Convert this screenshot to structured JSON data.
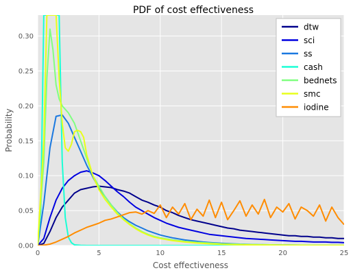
{
  "chart_data": {
    "type": "line",
    "title": "PDF of cost effectiveness",
    "xlabel": "Cost effectiveness",
    "ylabel": "Probability",
    "xlim": [
      0,
      25
    ],
    "ylim": [
      0,
      0.33
    ],
    "xticks": [
      0,
      5,
      10,
      15,
      20,
      25
    ],
    "yticks": [
      0.0,
      0.05,
      0.1,
      0.15,
      0.2,
      0.25,
      0.3
    ],
    "ytick_labels": [
      "0.00",
      "0.05",
      "0.10",
      "0.15",
      "0.20",
      "0.25",
      "0.30"
    ],
    "grid": true,
    "legend": "top-right",
    "series": [
      {
        "name": "dtw",
        "color": "#00008b",
        "x": [
          0,
          0.5,
          1,
          1.5,
          2,
          2.5,
          3,
          3.5,
          4,
          4.5,
          5,
          5.5,
          6,
          6.5,
          7,
          7.5,
          8,
          8.5,
          9,
          9.5,
          10,
          10.5,
          11,
          11.5,
          12,
          12.5,
          13,
          13.5,
          14,
          14.5,
          15,
          15.5,
          16,
          16.5,
          17,
          17.5,
          18,
          18.5,
          19,
          19.5,
          20,
          20.5,
          21,
          21.5,
          22,
          22.5,
          23,
          23.5,
          24,
          24.5,
          25
        ],
        "y": [
          0,
          0.003,
          0.02,
          0.04,
          0.055,
          0.065,
          0.075,
          0.08,
          0.082,
          0.084,
          0.085,
          0.084,
          0.083,
          0.08,
          0.078,
          0.075,
          0.07,
          0.065,
          0.062,
          0.058,
          0.055,
          0.05,
          0.047,
          0.043,
          0.04,
          0.037,
          0.035,
          0.033,
          0.031,
          0.029,
          0.027,
          0.025,
          0.024,
          0.022,
          0.021,
          0.02,
          0.019,
          0.018,
          0.017,
          0.016,
          0.015,
          0.014,
          0.014,
          0.013,
          0.013,
          0.012,
          0.012,
          0.011,
          0.011,
          0.01,
          0.01
        ]
      },
      {
        "name": "sci",
        "color": "#0000e0",
        "x": [
          0,
          0.5,
          1,
          1.5,
          2,
          2.5,
          3,
          3.5,
          4,
          4.5,
          5,
          5.5,
          6,
          6.5,
          7,
          7.5,
          8,
          8.5,
          9,
          9.5,
          10,
          10.5,
          11,
          11.5,
          12,
          12.5,
          13,
          13.5,
          14,
          14.5,
          15,
          15.5,
          16,
          16.5,
          17,
          17.5,
          18,
          18.5,
          19,
          19.5,
          20,
          20.5,
          21,
          21.5,
          22,
          22.5,
          23,
          23.5,
          24,
          24.5,
          25
        ],
        "y": [
          0,
          0.01,
          0.04,
          0.065,
          0.082,
          0.093,
          0.1,
          0.105,
          0.107,
          0.104,
          0.1,
          0.093,
          0.085,
          0.077,
          0.07,
          0.062,
          0.055,
          0.05,
          0.045,
          0.04,
          0.036,
          0.032,
          0.029,
          0.026,
          0.024,
          0.022,
          0.02,
          0.018,
          0.016,
          0.015,
          0.014,
          0.013,
          0.012,
          0.011,
          0.01,
          0.0095,
          0.009,
          0.0085,
          0.008,
          0.0075,
          0.007,
          0.0065,
          0.006,
          0.006,
          0.0055,
          0.005,
          0.005,
          0.005,
          0.0045,
          0.0045,
          0.004
        ]
      },
      {
        "name": "ss",
        "color": "#1a78e0",
        "x": [
          0,
          0.5,
          1,
          1.5,
          2,
          2.5,
          3,
          3.5,
          4,
          4.5,
          5,
          5.5,
          6,
          6.5,
          7,
          7.5,
          8,
          8.5,
          9,
          9.5,
          10,
          10.5,
          11,
          11.5,
          12,
          12.5,
          13,
          13.5,
          14,
          14.5,
          15,
          15.5,
          16,
          16.5,
          17,
          17.5,
          18,
          18.5,
          19,
          19.5,
          20,
          20.5,
          21,
          21.5,
          22,
          22.5,
          23,
          23.5,
          24,
          24.5,
          25
        ],
        "y": [
          0,
          0.06,
          0.14,
          0.185,
          0.187,
          0.175,
          0.155,
          0.135,
          0.115,
          0.098,
          0.082,
          0.07,
          0.058,
          0.048,
          0.04,
          0.034,
          0.029,
          0.025,
          0.021,
          0.018,
          0.015,
          0.013,
          0.011,
          0.0095,
          0.008,
          0.007,
          0.006,
          0.005,
          0.0043,
          0.0037,
          0.0032,
          0.0028,
          0.0024,
          0.002,
          0.0018,
          0.0015,
          0.0013,
          0.0011,
          0.001,
          0.0009,
          0.0008,
          0.0007,
          0.0006,
          0.0005,
          0.0005,
          0.0004,
          0.0004,
          0.0003,
          0.0003,
          0.0003,
          0.0002
        ]
      },
      {
        "name": "cash",
        "color": "#1affd5",
        "x": [
          0,
          0.25,
          0.5,
          0.75,
          1,
          1.25,
          1.5,
          1.75,
          2,
          2.25,
          2.5,
          2.75,
          3,
          3.5,
          4,
          5,
          6,
          8,
          10,
          15,
          20,
          25
        ],
        "y": [
          0,
          0.05,
          0.33,
          0.33,
          0.33,
          0.33,
          0.33,
          0.33,
          0.12,
          0.04,
          0.012,
          0.004,
          0.001,
          0.0002,
          0,
          0,
          0,
          0,
          0,
          0,
          0,
          0
        ]
      },
      {
        "name": "bednets",
        "color": "#80ff80",
        "x": [
          0,
          0.5,
          0.75,
          1,
          1.25,
          1.5,
          1.75,
          2,
          2.5,
          3,
          3.5,
          4,
          4.5,
          5,
          5.5,
          6,
          6.5,
          7,
          7.5,
          8,
          8.5,
          9,
          9.5,
          10,
          11,
          12,
          13,
          14,
          15,
          16,
          17,
          18,
          19,
          20,
          21,
          22,
          23,
          24,
          25
        ],
        "y": [
          0,
          0.12,
          0.24,
          0.31,
          0.28,
          0.23,
          0.21,
          0.2,
          0.19,
          0.175,
          0.15,
          0.125,
          0.1,
          0.085,
          0.07,
          0.058,
          0.047,
          0.038,
          0.031,
          0.025,
          0.02,
          0.016,
          0.013,
          0.011,
          0.008,
          0.006,
          0.0045,
          0.0035,
          0.0025,
          0.002,
          0.0015,
          0.0012,
          0.001,
          0.0008,
          0.0006,
          0.0005,
          0.0004,
          0.0003,
          0.0003
        ]
      },
      {
        "name": "smc",
        "color": "#e8ff1a",
        "x": [
          0,
          0.5,
          0.75,
          1,
          1.25,
          1.5,
          1.75,
          2,
          2.25,
          2.5,
          2.75,
          3,
          3.25,
          3.5,
          3.75,
          4,
          4.5,
          5,
          5.5,
          6,
          6.5,
          7,
          7.5,
          8,
          8.5,
          9,
          9.5,
          10,
          11,
          12,
          13,
          14,
          15,
          16,
          17,
          18,
          19,
          20,
          21,
          22,
          23,
          24,
          25
        ],
        "y": [
          0,
          0.15,
          0.33,
          0.33,
          0.33,
          0.33,
          0.24,
          0.175,
          0.14,
          0.135,
          0.145,
          0.163,
          0.165,
          0.163,
          0.155,
          0.13,
          0.1,
          0.08,
          0.066,
          0.055,
          0.045,
          0.037,
          0.03,
          0.024,
          0.019,
          0.015,
          0.012,
          0.01,
          0.007,
          0.005,
          0.0035,
          0.0025,
          0.0018,
          0.0013,
          0.001,
          0.0008,
          0.0006,
          0.0005,
          0.0004,
          0.0003,
          0.0003,
          0.0002,
          0.0002
        ]
      },
      {
        "name": "iodine",
        "color": "#ff8c00",
        "x": [
          0,
          0.5,
          1,
          1.5,
          2,
          2.5,
          3,
          3.5,
          4,
          4.5,
          5,
          5.5,
          6,
          6.5,
          7,
          7.5,
          8,
          8.5,
          9,
          9.5,
          10,
          10.5,
          11,
          11.5,
          12,
          12.5,
          13,
          13.5,
          14,
          14.5,
          15,
          15.5,
          16,
          16.5,
          17,
          17.5,
          18,
          18.5,
          19,
          19.5,
          20,
          20.5,
          21,
          21.5,
          22,
          22.5,
          23,
          23.5,
          24,
          24.5,
          25
        ],
        "y": [
          0,
          0.0005,
          0.002,
          0.005,
          0.009,
          0.013,
          0.018,
          0.022,
          0.026,
          0.029,
          0.032,
          0.036,
          0.038,
          0.041,
          0.044,
          0.047,
          0.048,
          0.045,
          0.05,
          0.046,
          0.058,
          0.04,
          0.055,
          0.045,
          0.06,
          0.037,
          0.052,
          0.042,
          0.065,
          0.04,
          0.062,
          0.037,
          0.05,
          0.064,
          0.042,
          0.058,
          0.045,
          0.066,
          0.04,
          0.055,
          0.048,
          0.06,
          0.038,
          0.055,
          0.05,
          0.042,
          0.058,
          0.035,
          0.055,
          0.04,
          0.03
        ]
      }
    ]
  }
}
